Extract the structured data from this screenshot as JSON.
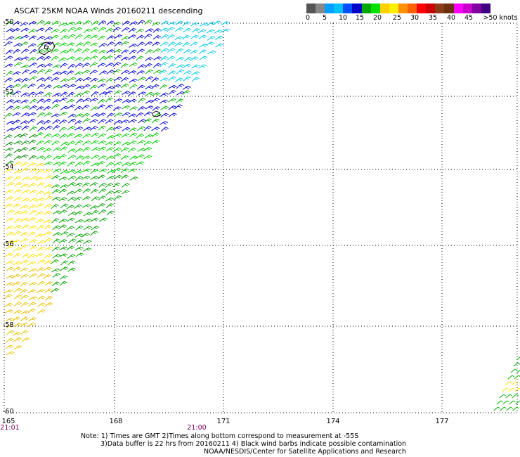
{
  "title": "ASCAT 25KM NOAA Winds 20160211 descending",
  "scale": {
    "colors": [
      "#555555",
      "#888888",
      "#00a0ff",
      "#00c0ff",
      "#0050ff",
      "#0000c8",
      "#00aa00",
      "#00e000",
      "#ffd000",
      "#ffee00",
      "#ff9000",
      "#ff6000",
      "#ff0000",
      "#cc0000",
      "#8b3a1a",
      "#6b3010",
      "#ff00ff",
      "#cc00cc",
      "#8000a0",
      "#400080"
    ],
    "labels": [
      "0",
      "5",
      "10",
      "15",
      "20",
      "25",
      "30",
      "35",
      "40",
      "45",
      ">50 knots"
    ]
  },
  "map": {
    "lat_labels": [
      "-50",
      "-52",
      "-54",
      "-56",
      "-58",
      "-60"
    ],
    "lon_labels": [
      "165",
      "168",
      "171",
      "174",
      "177"
    ],
    "time_labels": [
      "21:01",
      "21:00"
    ]
  },
  "notes": {
    "line1": "Note: 1) Times are GMT 2)Times along bottom correspond to measurement at -55S",
    "line2": "3)Data buffer is 22 hrs from 20160211 4) Black wind barbs indicate possible contamination",
    "line3": "NOAA/NESDIS/Center for Satellite Applications and Research"
  }
}
